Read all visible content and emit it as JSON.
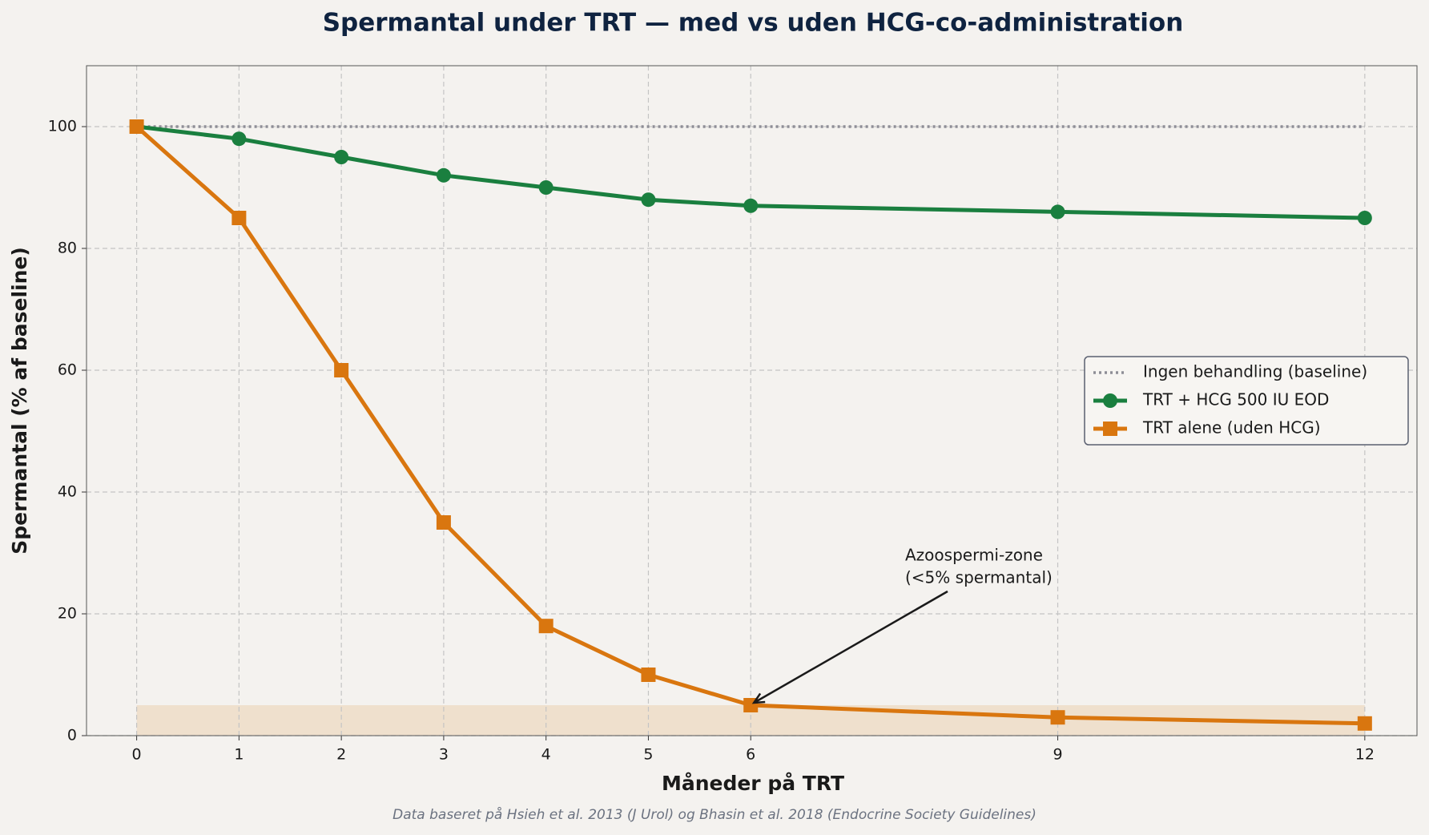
{
  "chart_data": {
    "type": "line",
    "title": "Spermantal under TRT — med vs uden HCG-co-administration",
    "x_label": "Måneder på TRT",
    "y_label": "Spermantal (% af baseline)",
    "footnote": "Data baseret på Hsieh et al. 2013 (J Urol) og Bhasin et al. 2018 (Endocrine Society Guidelines)",
    "x": [
      0,
      1,
      2,
      3,
      4,
      5,
      6,
      9,
      12
    ],
    "series": [
      {
        "name": "Ingen behandling (baseline)",
        "color": "#8e8e96",
        "style": "dotted",
        "marker": "none",
        "values": [
          100,
          100,
          100,
          100,
          100,
          100,
          100,
          100,
          100
        ]
      },
      {
        "name": "TRT + HCG 500 IU EOD",
        "color": "#1a7f3f",
        "style": "solid",
        "marker": "circle",
        "values": [
          100,
          98,
          95,
          92,
          90,
          88,
          87,
          86,
          85
        ]
      },
      {
        "name": "TRT alene (uden HCG)",
        "color": "#d9760f",
        "style": "solid",
        "marker": "square",
        "values": [
          100,
          85,
          60,
          35,
          18,
          10,
          5,
          3,
          2
        ]
      }
    ],
    "shade_ylim": [
      0,
      5
    ],
    "shade_color": "#d9760f",
    "annotation": [
      "Azoospermi-zone",
      "(<5% spermantal)"
    ],
    "xlim": [
      -0.49,
      12.51
    ],
    "ylim": [
      0,
      110
    ],
    "xticks": [
      0,
      1,
      2,
      3,
      4,
      5,
      6,
      9,
      12
    ],
    "yticks": [
      0,
      20,
      40,
      60,
      80,
      100
    ],
    "grid": true,
    "legend": "center right"
  }
}
